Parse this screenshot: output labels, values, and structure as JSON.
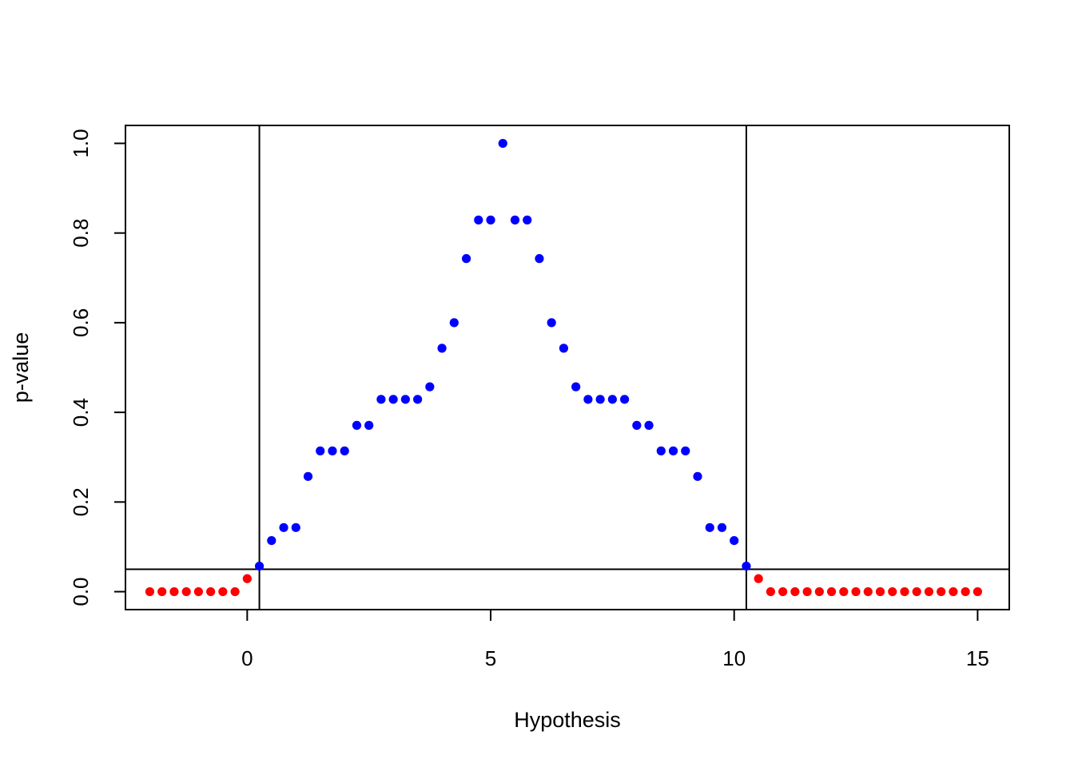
{
  "chart_data": {
    "type": "scatter",
    "title": "",
    "xlabel": "Hypothesis",
    "ylabel": "p-value",
    "xlim": [
      -2.5,
      15.65
    ],
    "ylim": [
      -0.04,
      1.04
    ],
    "xticks": [
      0,
      5,
      10,
      15
    ],
    "xtick_labels": [
      "0",
      "5",
      "10",
      "15"
    ],
    "yticks": [
      0.0,
      0.2,
      0.4,
      0.6,
      0.8,
      1.0
    ],
    "ytick_labels": [
      "0.0",
      "0.2",
      "0.4",
      "0.6",
      "0.8",
      "1.0"
    ],
    "grid": false,
    "hlines": [
      0.05
    ],
    "vlines": [
      0.25,
      10.25
    ],
    "colors": {
      "rejected": "#ff0000",
      "accepted": "#0000ff",
      "lines": "#000000"
    },
    "series": [
      {
        "color": "#ff0000",
        "x": [
          -2,
          -1.75,
          -1.5,
          -1.25,
          -1,
          -0.75,
          -0.5,
          -0.25,
          0,
          10.5,
          10.75,
          11,
          11.25,
          11.5,
          11.75,
          12,
          12.25,
          12.5,
          12.75,
          13,
          13.25,
          13.5,
          13.75,
          14,
          14.25,
          14.5,
          14.75,
          15
        ],
        "y": [
          0,
          0,
          0,
          0,
          0,
          0,
          0,
          0,
          0.029,
          0.029,
          0,
          0,
          0,
          0,
          0,
          0,
          0,
          0,
          0,
          0,
          0,
          0,
          0,
          0,
          0,
          0,
          0,
          0
        ]
      },
      {
        "color": "#0000ff",
        "x": [
          0.25,
          0.5,
          0.75,
          1,
          1.25,
          1.5,
          1.75,
          2,
          2.25,
          2.5,
          2.75,
          3,
          3.25,
          3.5,
          3.75,
          4,
          4.25,
          4.5,
          4.75,
          5,
          5.25,
          5.5,
          5.75,
          6,
          6.25,
          6.5,
          6.75,
          7,
          7.25,
          7.5,
          7.75,
          8,
          8.25,
          8.5,
          8.75,
          9,
          9.25,
          9.5,
          9.75,
          10,
          10.25
        ],
        "y": [
          0.057,
          0.114,
          0.143,
          0.143,
          0.257,
          0.314,
          0.314,
          0.314,
          0.371,
          0.371,
          0.429,
          0.429,
          0.429,
          0.429,
          0.457,
          0.543,
          0.6,
          0.743,
          0.829,
          0.829,
          1.0,
          0.829,
          0.829,
          0.743,
          0.6,
          0.543,
          0.457,
          0.429,
          0.429,
          0.429,
          0.429,
          0.371,
          0.371,
          0.314,
          0.314,
          0.314,
          0.257,
          0.143,
          0.143,
          0.114,
          0.057
        ]
      }
    ]
  }
}
